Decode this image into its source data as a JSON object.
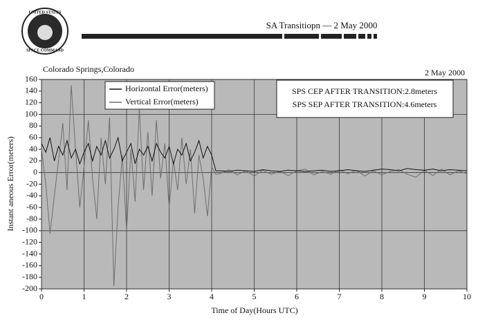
{
  "chart_data": {
    "type": "line",
    "title": "SA Transitiopn — 2 May 2000",
    "logo_texts": [
      "UNITED STATES",
      "SPACE COMMAND"
    ],
    "location": "Colorado Springs,Colorado",
    "date": "2 May 2000",
    "annotations": [
      "SPS CEP AFTER TRANSITION:2.8meters",
      "SPS SEP AFTER TRANSITION:4.6meters"
    ],
    "x_label": "Time of Day(Hours UTC)",
    "y_label": "Instant aneous Error(meters)",
    "x": [
      0,
      0.1,
      0.2,
      0.3,
      0.4,
      0.5,
      0.6,
      0.7,
      0.8,
      0.9,
      1,
      1.1,
      1.2,
      1.3,
      1.4,
      1.5,
      1.6,
      1.7,
      1.8,
      1.9,
      2,
      2.1,
      2.2,
      2.3,
      2.4,
      2.5,
      2.6,
      2.7,
      2.8,
      2.9,
      3,
      3.1,
      3.2,
      3.3,
      3.4,
      3.5,
      3.6,
      3.7,
      3.8,
      3.9,
      4,
      4.1,
      4.2,
      4.4,
      4.6,
      4.8,
      5,
      5.2,
      5.4,
      5.6,
      5.8,
      6,
      6.2,
      6.4,
      6.6,
      6.8,
      7,
      7.2,
      7.4,
      7.6,
      7.8,
      8,
      8.2,
      8.4,
      8.6,
      8.8,
      9,
      9.2,
      9.4,
      9.6,
      9.8,
      10
    ],
    "series": [
      {
        "name": "Horizontal Error(meters)",
        "color": "#111111",
        "values": [
          50,
          35,
          60,
          20,
          45,
          30,
          55,
          25,
          40,
          15,
          35,
          50,
          20,
          45,
          30,
          55,
          25,
          40,
          60,
          20,
          35,
          50,
          15,
          40,
          30,
          45,
          20,
          50,
          35,
          25,
          45,
          15,
          40,
          30,
          50,
          20,
          35,
          55,
          25,
          45,
          30,
          3,
          3,
          2,
          4,
          3,
          2,
          5,
          3,
          2,
          4,
          3,
          2,
          3,
          4,
          2,
          3,
          5,
          3,
          2,
          4,
          6,
          5,
          3,
          7,
          5,
          4,
          6,
          3,
          5,
          4,
          3
        ]
      },
      {
        "name": "Vertical Error(meters)",
        "color": "#6e6e6e",
        "values": [
          40,
          -20,
          -105,
          -40,
          20,
          85,
          -30,
          150,
          40,
          -60,
          10,
          90,
          -10,
          -80,
          60,
          -20,
          95,
          -195,
          -60,
          30,
          -100,
          40,
          -50,
          110,
          -30,
          70,
          -40,
          90,
          -10,
          50,
          -60,
          20,
          -30,
          60,
          -20,
          40,
          -70,
          30,
          -10,
          -75,
          10,
          -3,
          -2,
          5,
          -4,
          3,
          -6,
          4,
          -3,
          2,
          -5,
          3,
          6,
          -4,
          2,
          -3,
          5,
          -2,
          4,
          -6,
          3,
          -4,
          2,
          5,
          -3,
          -8,
          4,
          -5,
          6,
          -4,
          3,
          -2
        ]
      }
    ],
    "xlim": [
      0,
      10
    ],
    "xticks": [
      0,
      1,
      2,
      3,
      4,
      5,
      6,
      7,
      8,
      9,
      10
    ],
    "ylim": [
      -200,
      160
    ],
    "yticks": [
      -200,
      -180,
      -160,
      -140,
      -120,
      -100,
      -80,
      -60,
      -40,
      -20,
      0,
      20,
      40,
      60,
      80,
      100,
      120,
      140,
      160
    ],
    "grid": true,
    "background": "#b9b9b9"
  }
}
